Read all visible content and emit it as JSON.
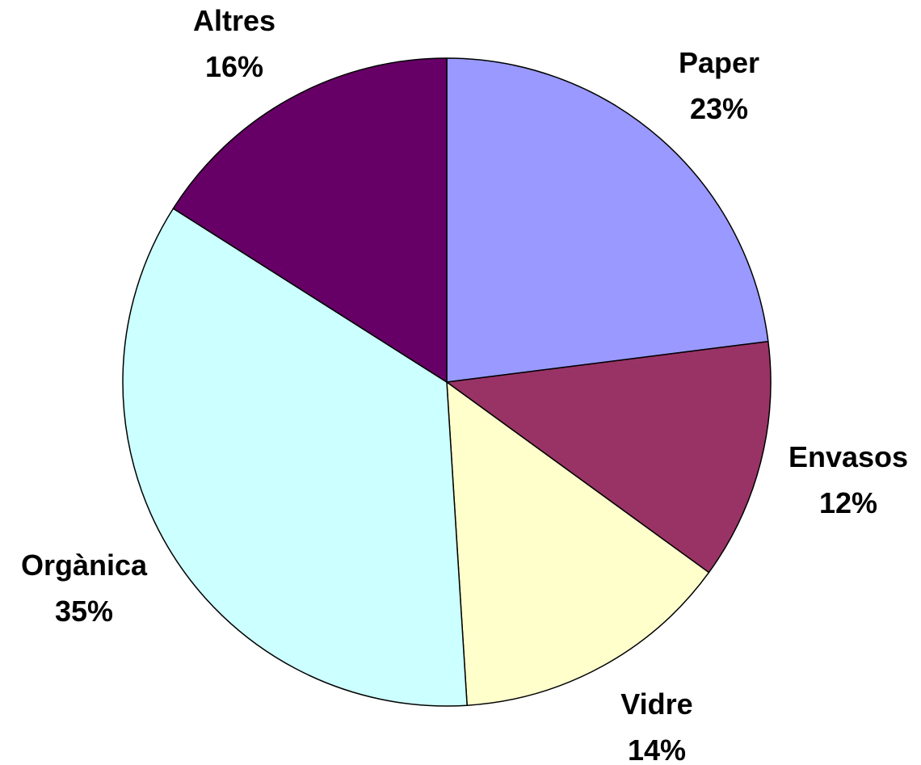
{
  "chart_data": {
    "type": "pie",
    "categories": [
      "Paper",
      "Envasos",
      "Vidre",
      "Orgànica",
      "Altres"
    ],
    "values": [
      23,
      12,
      14,
      35,
      16
    ],
    "labels": [
      "23%",
      "12%",
      "14%",
      "35%",
      "16%"
    ],
    "colors": [
      "#9999FF",
      "#993366",
      "#FFFFCC",
      "#CCFFFF",
      "#660066"
    ],
    "start_angle_deg": 0,
    "direction": "clockwise",
    "legend": "none"
  }
}
